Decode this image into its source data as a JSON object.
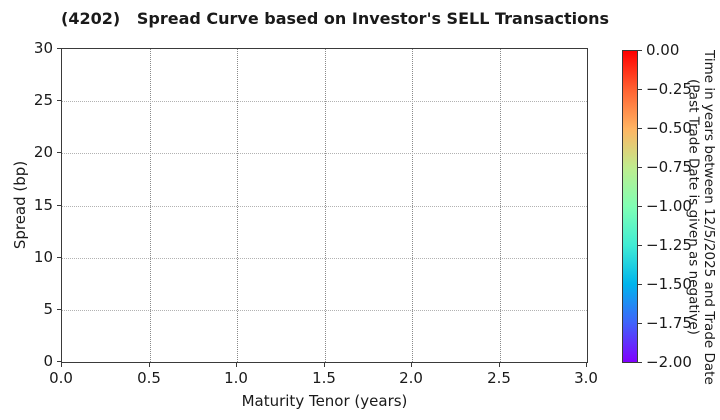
{
  "chart_data": {
    "type": "scatter",
    "title": "(4202)   Spread Curve based on Investor's SELL Transactions",
    "xlabel": "Maturity Tenor (years)",
    "ylabel": "Spread (bp)",
    "xlim": [
      0.0,
      3.0
    ],
    "ylim": [
      0,
      30
    ],
    "xticks": [
      "0.0",
      "0.5",
      "1.0",
      "1.5",
      "2.0",
      "2.5",
      "3.0"
    ],
    "yticks": [
      "0",
      "5",
      "10",
      "15",
      "20",
      "25",
      "30"
    ],
    "grid": "dotted",
    "legend": "none",
    "points": [],
    "colorbar": {
      "label_line1": "Time in years between 12/5/2025 and Trade Date",
      "label_line2": "(Past Trade Date is given as negative)",
      "ticks": [
        "0.00",
        "−0.25",
        "−0.50",
        "−0.75",
        "−1.00",
        "−1.25",
        "−1.50",
        "−1.75",
        "−2.00"
      ],
      "range_top": 0.0,
      "range_bottom": -2.0,
      "colormap": "rainbow",
      "gradient": [
        "#ff0000",
        "#ff6232",
        "#ffb462",
        "#bfec8e",
        "#80ffb4",
        "#40ecd4",
        "#00b4ec",
        "#4062fa",
        "#8000ff"
      ]
    },
    "colors": {
      "background": "#ffffff",
      "spine": "#3a3a3a",
      "grid_v": "#8a8a8a",
      "grid_h": "#b2b2b2",
      "text": "#1a1a1a"
    }
  }
}
